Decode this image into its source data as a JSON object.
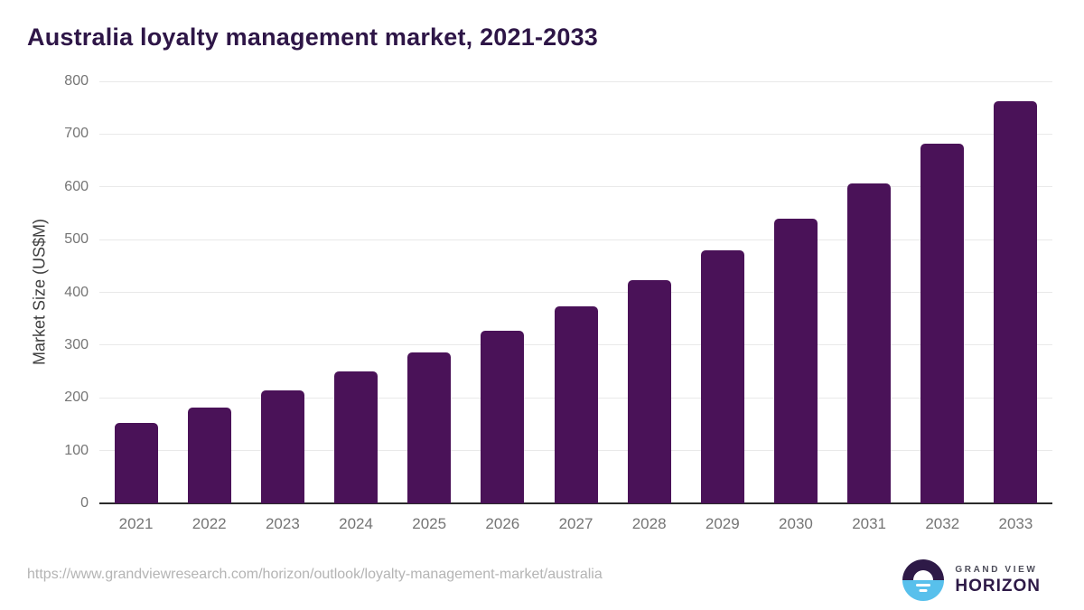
{
  "header": {
    "title": "Australia loyalty management market, 2021-2033"
  },
  "chart_data": {
    "type": "bar",
    "title": "Australia loyalty management market, 2021-2033",
    "categories": [
      "2021",
      "2022",
      "2023",
      "2024",
      "2025",
      "2026",
      "2027",
      "2028",
      "2029",
      "2030",
      "2031",
      "2032",
      "2033"
    ],
    "values": [
      152,
      181,
      215,
      250,
      286,
      327,
      373,
      424,
      479,
      540,
      607,
      682,
      763
    ],
    "xlabel": "",
    "ylabel": "Market Size (US$M)",
    "ylim": [
      0,
      800
    ],
    "yticks": [
      0,
      100,
      200,
      300,
      400,
      500,
      600,
      700,
      800
    ],
    "grid": "horizontal",
    "legend": "none",
    "bar_color": "#4a1258"
  },
  "footer": {
    "source_url": "https://www.grandviewresearch.com/horizon/outlook/loyalty-management-market/australia",
    "logo": {
      "top_text": "GRAND VIEW",
      "bottom_text": "HORIZON"
    }
  },
  "colors": {
    "title": "#2e1647",
    "bar": "#4a1258",
    "gridline": "#e9e9e9",
    "axis_line": "#2b2b2b",
    "tick_label": "#757575",
    "axis_title": "#3f3f3f",
    "source_text": "#b4b4b4",
    "logo_dark": "#2e1a47",
    "logo_blue": "#58c0ec"
  }
}
